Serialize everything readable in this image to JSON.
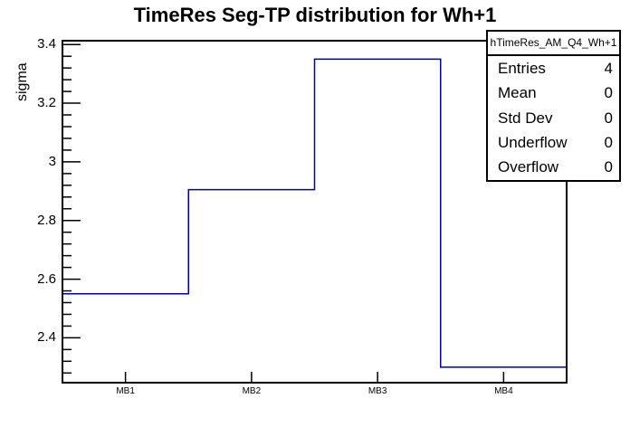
{
  "chart_data": {
    "type": "bar",
    "style": "root-step-histogram",
    "title": "TimeRes Seg-TP distribution for Wh+1",
    "xlabel": "",
    "ylabel": "sigma",
    "categories": [
      "MB1",
      "MB2",
      "MB3",
      "MB4"
    ],
    "values": [
      2.55,
      2.905,
      3.35,
      2.3
    ],
    "ylim": [
      2.247,
      3.413
    ],
    "y_major_ticks": [
      2.4,
      2.6,
      2.8,
      3.0,
      3.2,
      3.4
    ],
    "y_tick_labels": [
      "2.4",
      "2.6",
      "2.8",
      "3",
      "3.2",
      "3.4"
    ],
    "y_minor_step": 0.04,
    "grid": false,
    "legend_position": "none",
    "line_color": "#000099",
    "frame_color": "#000000"
  },
  "stats_box": {
    "title": "hTimeRes_AM_Q4_Wh+1",
    "rows": [
      {
        "label": "Entries",
        "value": "4"
      },
      {
        "label": "Mean",
        "value": "0"
      },
      {
        "label": "Std Dev",
        "value": "0"
      },
      {
        "label": "Underflow",
        "value": "0"
      },
      {
        "label": "Overflow",
        "value": "0"
      }
    ]
  }
}
